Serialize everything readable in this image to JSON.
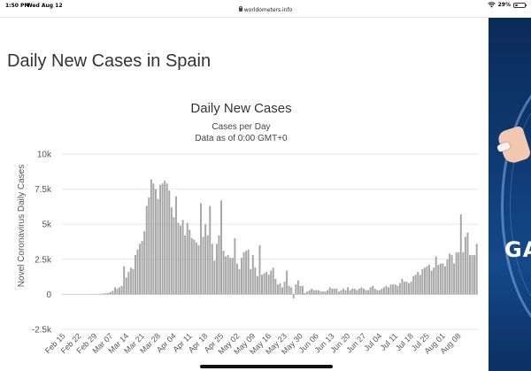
{
  "status_bar": {
    "time": "1:50 PM",
    "date": "Wed Aug 12",
    "url": "worldometers.info",
    "battery": "29%",
    "battery_level": 0.29
  },
  "page": {
    "title": "Daily New Cases in Spain"
  },
  "ad": {
    "text": "GA"
  },
  "chart_data": {
    "type": "bar",
    "title": "Daily New Cases",
    "subtitle": "Cases per Day",
    "subtitle2": "Data as of 0:00 GMT+0",
    "ylabel": "Novel Coronavirus Daily Cases",
    "xlabel": "",
    "ylim": [
      -2500,
      10000
    ],
    "yticks": [
      -2500,
      0,
      2500,
      5000,
      7500,
      10000
    ],
    "ytick_labels": [
      "-2.5k",
      "0",
      "2.5k",
      "5k",
      "7.5k",
      "10k"
    ],
    "xtick_labels": [
      "Feb 15",
      "Feb 22",
      "Feb 29",
      "Mar 07",
      "Mar 14",
      "Mar 21",
      "Mar 28",
      "Apr 04",
      "Apr 11",
      "Apr 18",
      "Apr 25",
      "May 02",
      "May 09",
      "May 16",
      "May 23",
      "May 30",
      "Jun 06",
      "Jun 13",
      "Jun 20",
      "Jun 27",
      "Jul 04",
      "Jul 11",
      "Jul 18",
      "Jul 25",
      "Aug 01",
      "Aug 08"
    ],
    "start_date": "Feb 15",
    "grid": true,
    "bar_color": "#a6a6a6",
    "values": [
      0,
      0,
      0,
      0,
      0,
      0,
      0,
      0,
      0,
      0,
      0,
      0,
      0,
      0,
      0,
      0,
      20,
      30,
      60,
      80,
      100,
      150,
      250,
      500,
      400,
      500,
      600,
      2000,
      1200,
      1600,
      1900,
      1800,
      2800,
      3200,
      3600,
      3800,
      4500,
      6300,
      6900,
      8200,
      7900,
      7500,
      6800,
      7800,
      7900,
      8100,
      7900,
      7400,
      6200,
      5500,
      7000,
      5100,
      4900,
      5300,
      4200,
      5100,
      4600,
      4000,
      3900,
      3700,
      3500,
      6500,
      4100,
      5000,
      4200,
      6300,
      3600,
      2400,
      3600,
      4200,
      6700,
      3100,
      2700,
      2800,
      2600,
      2600,
      4000,
      2200,
      1800,
      2600,
      3000,
      3100,
      3200,
      1800,
      2800,
      1900,
      1300,
      3500,
      1400,
      1500,
      1600,
      1400,
      1700,
      1900,
      1100,
      700,
      800,
      500,
      900,
      1700,
      600,
      500,
      -300,
      700,
      1000,
      600,
      600,
      100,
      200,
      300,
      400,
      300,
      300,
      300,
      200,
      200,
      200,
      300,
      500,
      400,
      400,
      400,
      200,
      300,
      400,
      300,
      500,
      300,
      400,
      400,
      300,
      400,
      500,
      400,
      300,
      300,
      500,
      600,
      400,
      300,
      300,
      400,
      500,
      600,
      500,
      700,
      700,
      700,
      600,
      800,
      1100,
      900,
      900,
      800,
      900,
      1300,
      1400,
      1600,
      1400,
      1800,
      1900,
      2000,
      2100,
      1700,
      1900,
      2700,
      2100,
      2200,
      2200,
      2000,
      2500,
      2900,
      2800,
      2200,
      3000,
      3000,
      5700,
      3000,
      4100,
      4400,
      2800,
      2800,
      2800,
      3600
    ]
  }
}
